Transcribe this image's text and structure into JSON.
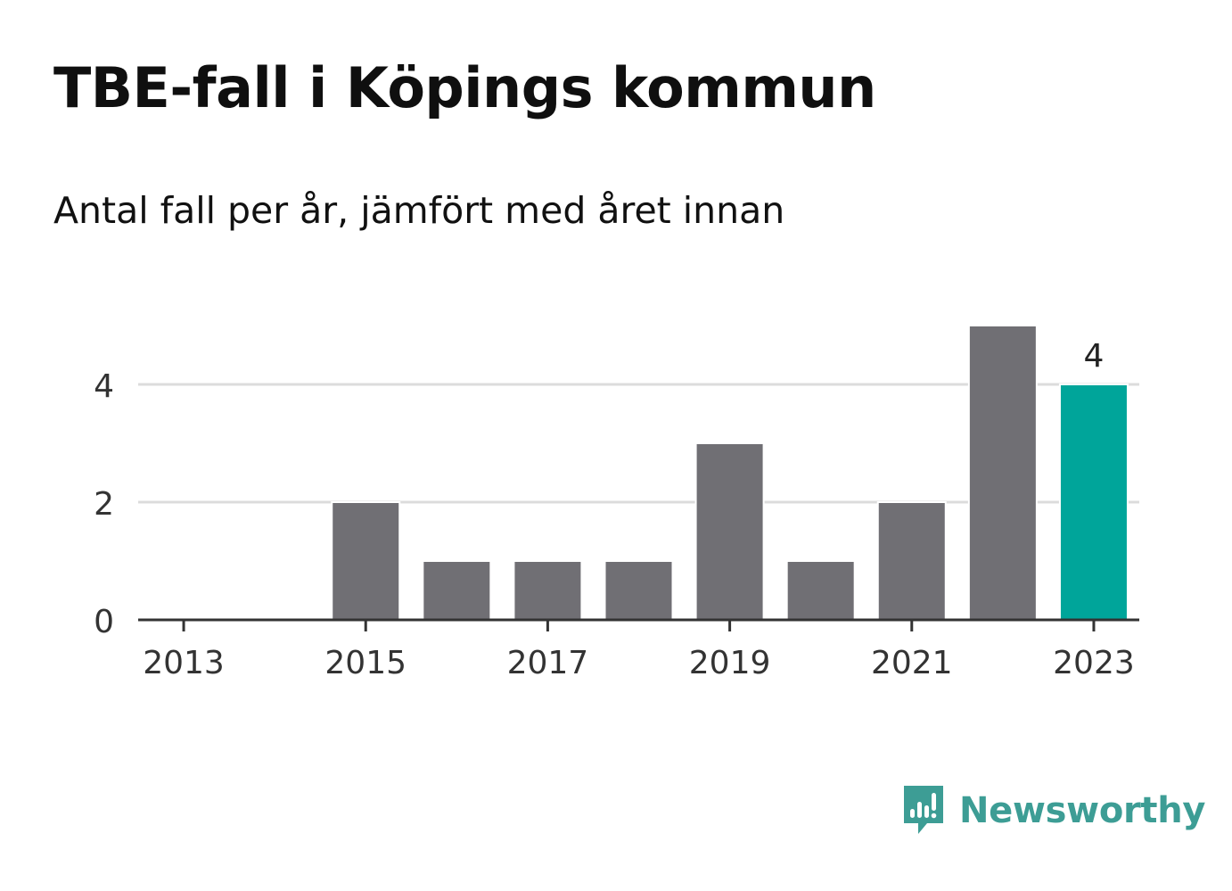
{
  "title": "TBE-fall i Köpings kommun",
  "subtitle": "Antal fall per år, jämfört med året innan",
  "brand": {
    "name": "Newsworthy",
    "icon": "newsworthy-logo-icon",
    "color": "#3d9d95"
  },
  "chart_data": {
    "type": "bar",
    "categories": [
      "2013",
      "2014",
      "2015",
      "2016",
      "2017",
      "2018",
      "2019",
      "2020",
      "2021",
      "2022",
      "2023"
    ],
    "values": [
      0,
      0,
      2,
      1,
      1,
      1,
      3,
      1,
      2,
      5,
      4
    ],
    "x_tick_labels": [
      "2013",
      "2015",
      "2017",
      "2019",
      "2021",
      "2023"
    ],
    "y_ticks": [
      0,
      2,
      4
    ],
    "ylim": [
      0,
      5
    ],
    "grid": true,
    "bar_color": "#706f74",
    "highlight_color": "#00a59a",
    "highlight_category": "2023",
    "data_labels": [
      {
        "category": "2023",
        "label": "4"
      }
    ]
  }
}
